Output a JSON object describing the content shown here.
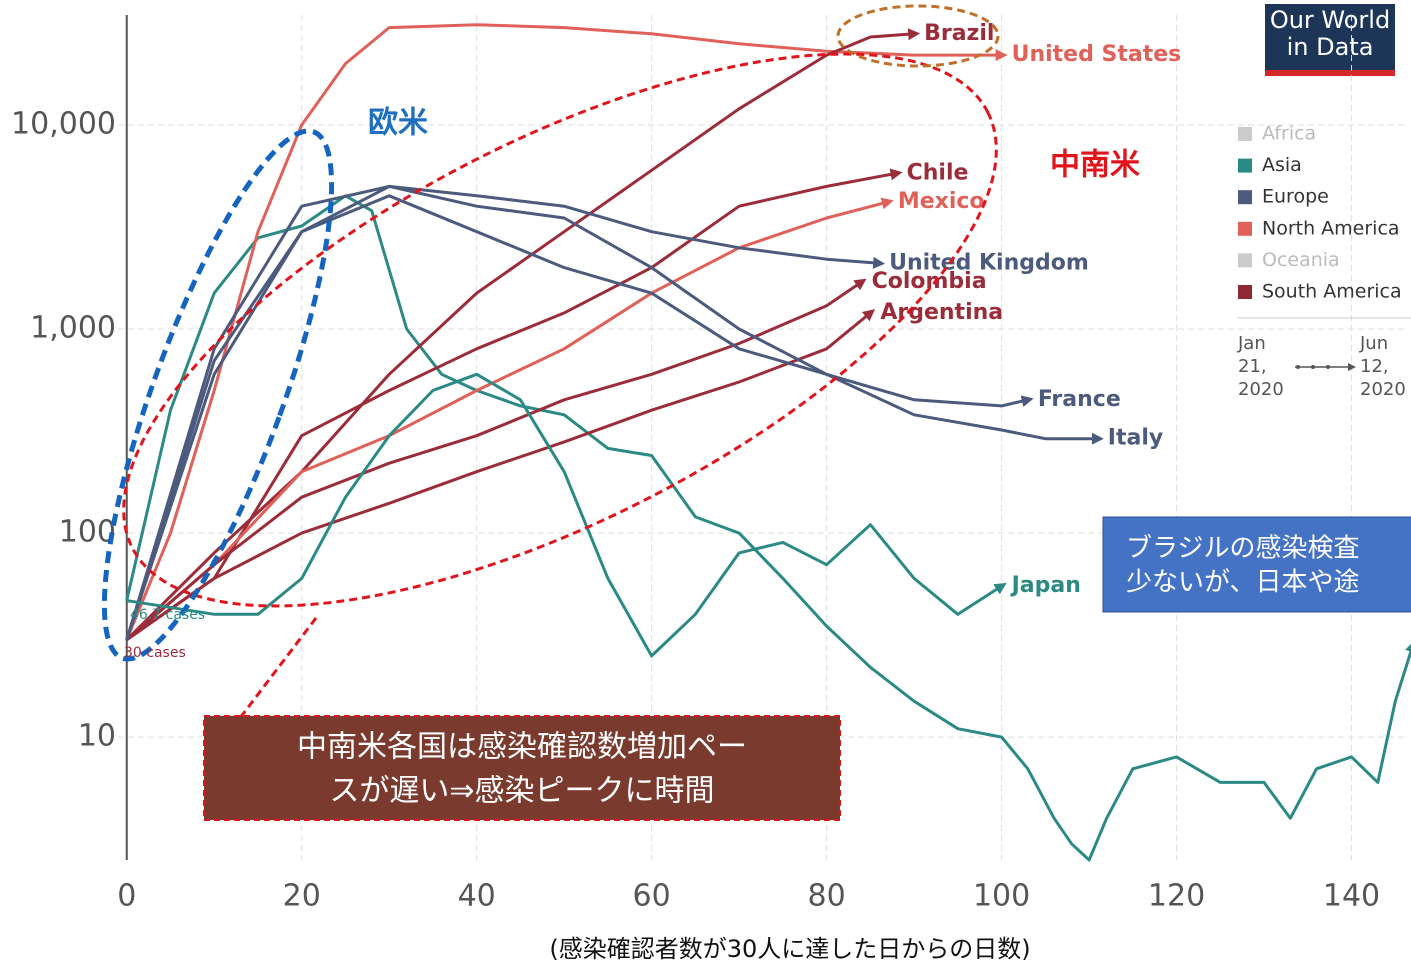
{
  "chart_data": {
    "type": "line",
    "log_y": true,
    "xlabel": "(感染確認者数が30人に達した日からの日数)",
    "xlim": [
      -1,
      146
    ],
    "xticks": [
      0,
      20,
      40,
      60,
      80,
      100,
      120,
      140
    ],
    "ylim": [
      2.5,
      34600
    ],
    "yticks": [
      10,
      100,
      {
        "value": 1000,
        "label": "1,000"
      },
      {
        "value": 10000,
        "label": "10,000"
      }
    ],
    "grid": true,
    "series": [
      {
        "color": "#2b8a85",
        "x": [
          0,
          5,
          10,
          15,
          20,
          25,
          28,
          32,
          36,
          40,
          45,
          50,
          55,
          60,
          65,
          70,
          75,
          80,
          85,
          90,
          95,
          100,
          103,
          106,
          108,
          110,
          112,
          115,
          120,
          125,
          130,
          133,
          136,
          140,
          143,
          145,
          147
        ],
        "values": [
          46.7,
          400,
          1500,
          2800,
          3200,
          4500,
          3800,
          1000,
          600,
          500,
          420,
          380,
          260,
          240,
          120,
          100,
          60,
          35,
          22,
          15,
          11,
          10,
          7,
          4,
          3,
          2.5,
          4,
          7,
          8,
          6,
          6,
          4,
          7,
          8,
          6,
          15,
          28
        ]
      },
      {
        "name": "United States",
        "color": "#e0605a",
        "x": [
          0,
          5,
          10,
          15,
          20,
          25,
          30,
          40,
          50,
          60,
          70,
          80,
          90,
          100
        ],
        "values": [
          30,
          100,
          500,
          3000,
          10000,
          20000,
          30000,
          31000,
          30000,
          28000,
          25000,
          23000,
          22000,
          22000
        ]
      },
      {
        "name": "Brazil",
        "color": "#9b2d3a",
        "x": [
          0,
          10,
          20,
          30,
          40,
          50,
          60,
          70,
          80,
          85,
          90
        ],
        "values": [
          30,
          80,
          200,
          600,
          1500,
          3000,
          6000,
          12000,
          22000,
          27000,
          28000
        ]
      },
      {
        "name": "Chile",
        "color": "#9b2d3a",
        "x": [
          0,
          10,
          20,
          30,
          40,
          50,
          60,
          70,
          80,
          88
        ],
        "values": [
          30,
          60,
          300,
          500,
          800,
          1200,
          2000,
          4000,
          5000,
          5800
        ]
      },
      {
        "name": "Mexico",
        "color": "#e0605a",
        "x": [
          0,
          10,
          20,
          30,
          40,
          50,
          60,
          70,
          80,
          87
        ],
        "values": [
          30,
          70,
          200,
          300,
          500,
          800,
          1500,
          2500,
          3500,
          4200
        ]
      },
      {
        "name": "Colombia",
        "color": "#9b2d3a",
        "x": [
          0,
          10,
          20,
          30,
          40,
          50,
          60,
          70,
          80,
          84
        ],
        "values": [
          30,
          70,
          150,
          220,
          300,
          450,
          600,
          850,
          1300,
          1700
        ]
      },
      {
        "name": "Argentina",
        "color": "#9b2d3a",
        "x": [
          0,
          10,
          20,
          30,
          40,
          50,
          60,
          70,
          80,
          85
        ],
        "values": [
          30,
          60,
          100,
          140,
          200,
          280,
          400,
          550,
          800,
          1200
        ]
      },
      {
        "name": "United Kingdom",
        "color": "#4c5a7d",
        "x": [
          0,
          10,
          20,
          30,
          40,
          50,
          60,
          70,
          80,
          86
        ],
        "values": [
          30,
          700,
          3000,
          5000,
          4500,
          4000,
          3000,
          2500,
          2200,
          2100
        ]
      },
      {
        "name": "France",
        "color": "#4c5a7d",
        "x": [
          0,
          10,
          20,
          30,
          40,
          50,
          60,
          70,
          80,
          90,
          100,
          103
        ],
        "values": [
          30,
          600,
          3000,
          4500,
          3000,
          2000,
          1500,
          800,
          600,
          450,
          420,
          450
        ]
      },
      {
        "name": "Italy",
        "color": "#4c5a7d",
        "x": [
          0,
          10,
          20,
          30,
          40,
          50,
          60,
          70,
          80,
          90,
          100,
          105,
          111
        ],
        "values": [
          30,
          800,
          4000,
          5000,
          4000,
          3500,
          2000,
          1000,
          600,
          380,
          320,
          290,
          290
        ]
      },
      {
        "name": "Japan",
        "color": "#2b8a85",
        "x": [
          0,
          10,
          15,
          20,
          25,
          30,
          35,
          40,
          45,
          50,
          55,
          60,
          65,
          70,
          75,
          80,
          85,
          90,
          95,
          100
        ],
        "values": [
          46.7,
          40,
          40,
          60,
          150,
          300,
          500,
          600,
          450,
          200,
          60,
          25,
          40,
          80,
          90,
          70,
          110,
          60,
          40,
          55
        ]
      }
    ],
    "legend": [
      {
        "name": "Africa",
        "color": "#cccccc"
      },
      {
        "name": "Asia",
        "color": "#2b8a85"
      },
      {
        "name": "Europe",
        "color": "#4c5a7d"
      },
      {
        "name": "North America",
        "color": "#e0605a"
      },
      {
        "name": "Oceania",
        "color": "#cccccc"
      },
      {
        "name": "South America",
        "color": "#8e2a36"
      }
    ],
    "time_start": [
      "Jan",
      "21,",
      "2020"
    ],
    "time_end": [
      "Jun",
      "12,",
      "2020"
    ],
    "start_labels": [
      "46.7 cases",
      "30 cases"
    ],
    "annotations": {
      "europe": "欧米",
      "latam": "中南米"
    },
    "box_latam": [
      "中南米各国は感染確認数増加ペー",
      "スが遅い⇒感染ピークに時間"
    ],
    "box_brazil": [
      "ブラジルの感染検査",
      "少ないが、日本や途"
    ],
    "logo": [
      "Our World",
      "in Data"
    ]
  }
}
